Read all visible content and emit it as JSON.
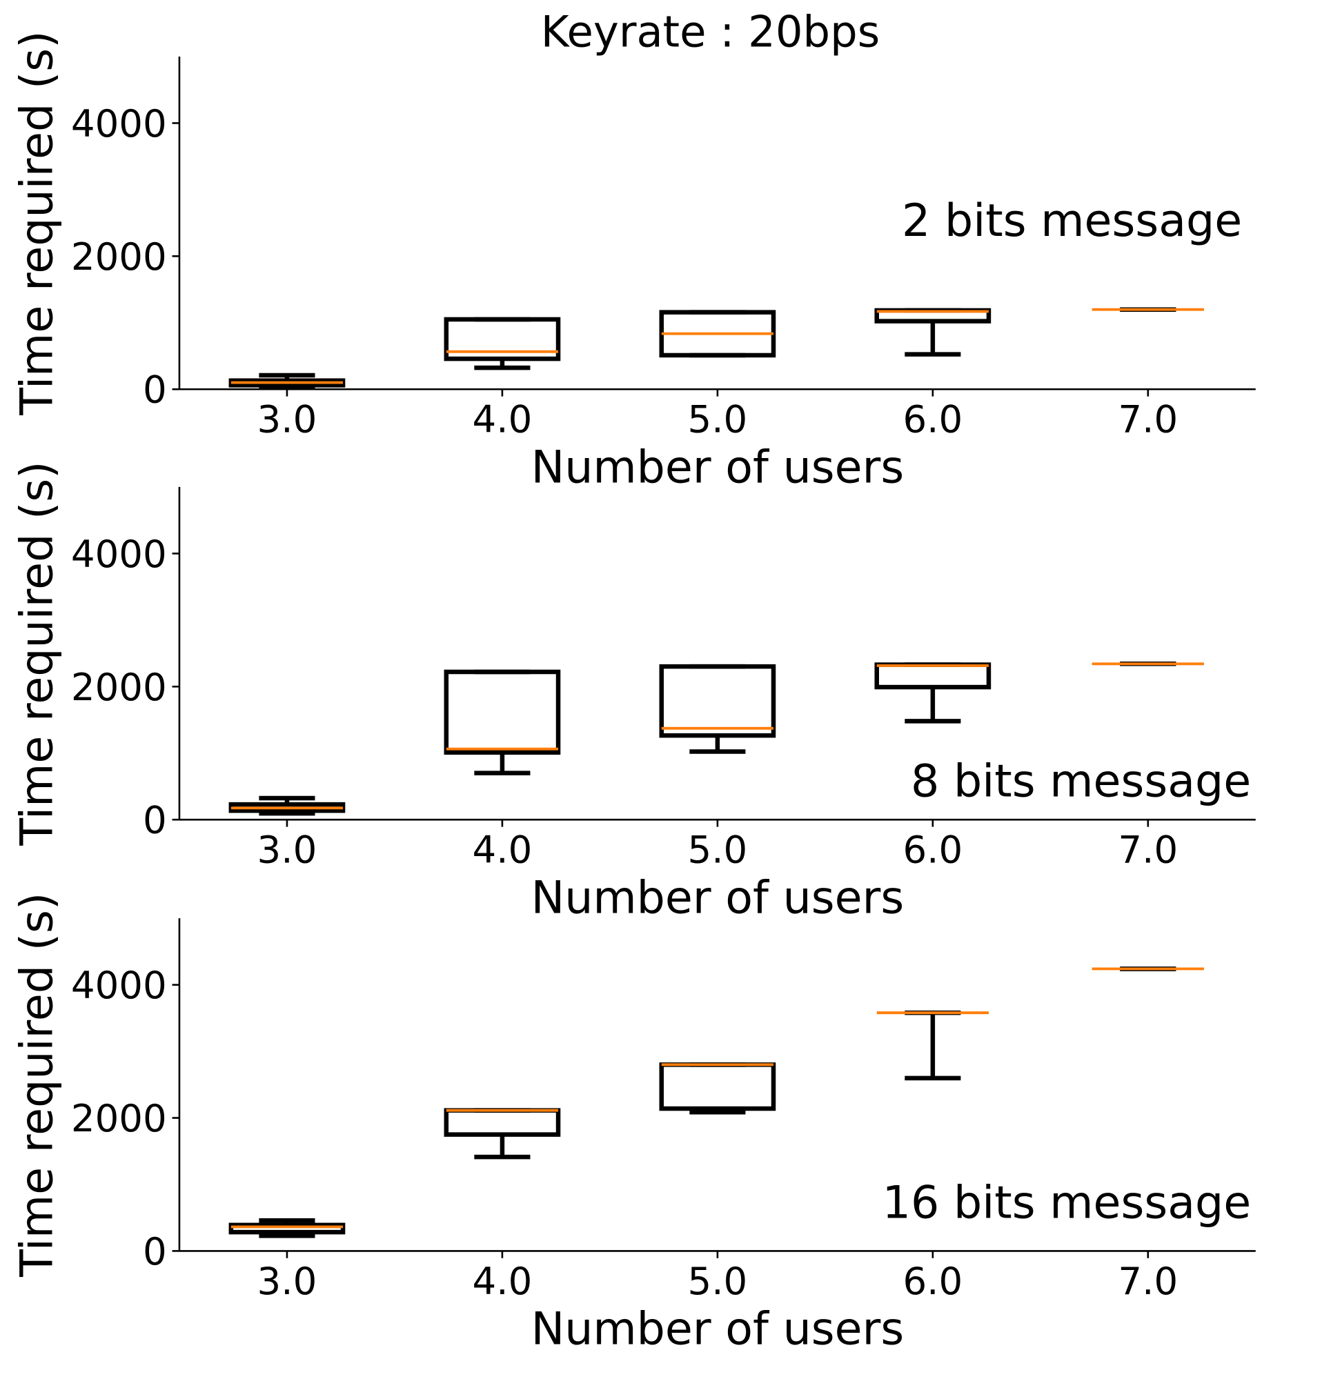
{
  "chart_data": [
    {
      "type": "box",
      "title": "Keyrate : 20bps",
      "annotation": "2 bits message",
      "x_label": "Number of users",
      "y_label": "Time required (s)",
      "x": [
        3,
        4,
        5,
        6,
        7
      ],
      "min": [
        40,
        323,
        511,
        525,
        1198
      ],
      "q1": [
        60,
        458,
        511,
        1023,
        1198
      ],
      "median": [
        100,
        565,
        835,
        1170,
        1198
      ],
      "q3": [
        130,
        1050,
        1157,
        1185,
        1198
      ],
      "max": [
        210,
        1050,
        1157,
        1185,
        1198
      ],
      "color": "#000000",
      "median_color": "#ff7f0e",
      "xlim": [
        2.5,
        7.5
      ],
      "xticks": [
        {
          "value": 3,
          "label": "3.0"
        },
        {
          "value": 4,
          "label": "4.0"
        },
        {
          "value": 5,
          "label": "5.0"
        },
        {
          "value": 6,
          "label": "6.0"
        },
        {
          "value": 7,
          "label": "7.0"
        }
      ],
      "ylim": [
        0,
        5000
      ],
      "yticks": [
        0,
        2000,
        4000
      ]
    },
    {
      "type": "box",
      "annotation": "8 bits message",
      "x_label": "Number of users",
      "y_label": "Time required (s)",
      "x": [
        3,
        4,
        5,
        6,
        7
      ],
      "min": [
        94,
        700,
        1023,
        1481,
        2342
      ],
      "q1": [
        135,
        1010,
        1265,
        1992,
        2342
      ],
      "median": [
        175,
        1063,
        1373,
        2315,
        2342
      ],
      "q3": [
        229,
        2221,
        2302,
        2329,
        2342
      ],
      "max": [
        323,
        2221,
        2302,
        2329,
        2342
      ],
      "color": "#000000",
      "median_color": "#ff7f0e",
      "xlim": [
        2.5,
        7.5
      ],
      "xticks": [
        {
          "value": 3,
          "label": "3.0"
        },
        {
          "value": 4,
          "label": "4.0"
        },
        {
          "value": 5,
          "label": "5.0"
        },
        {
          "value": 6,
          "label": "6.0"
        },
        {
          "value": 7,
          "label": "7.0"
        }
      ],
      "ylim": [
        0,
        5000
      ],
      "yticks": [
        0,
        2000,
        4000
      ]
    },
    {
      "type": "box",
      "annotation": "16 bits message",
      "x_label": "Number of users",
      "y_label": "Time required (s)",
      "x": [
        3,
        4,
        5,
        6,
        7
      ],
      "min": [
        229,
        1413,
        2086,
        2598,
        4240
      ],
      "q1": [
        283,
        1750,
        2140,
        3580,
        4240
      ],
      "median": [
        363,
        2113,
        2800,
        3580,
        4240
      ],
      "q3": [
        390,
        2113,
        2800,
        3580,
        4240
      ],
      "max": [
        458,
        2113,
        2800,
        3580,
        4240
      ],
      "color": "#000000",
      "median_color": "#ff7f0e",
      "xlim": [
        2.5,
        7.5
      ],
      "xticks": [
        {
          "value": 3,
          "label": "3.0"
        },
        {
          "value": 4,
          "label": "4.0"
        },
        {
          "value": 5,
          "label": "5.0"
        },
        {
          "value": 6,
          "label": "6.0"
        },
        {
          "value": 7,
          "label": "7.0"
        }
      ],
      "ylim": [
        0,
        5000
      ],
      "yticks": [
        0,
        2000,
        4000
      ]
    }
  ]
}
